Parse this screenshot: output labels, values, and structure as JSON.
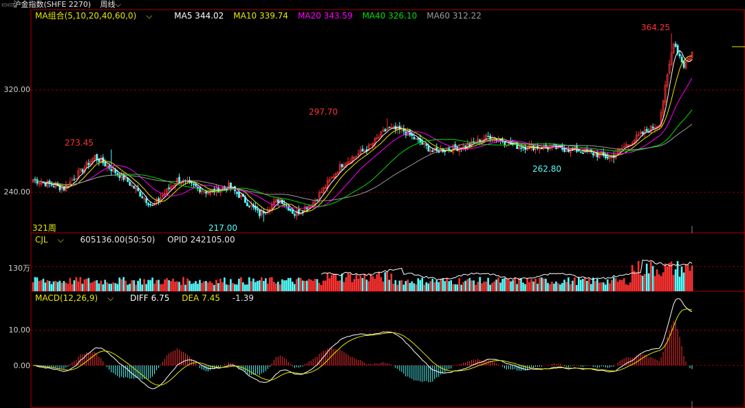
{
  "title_bar": {
    "instrument": "沪金指数(SHFE 2270)",
    "period": "周线",
    "period_arrow": "⌵",
    "icon": "chart-window-icon"
  },
  "main_panel": {
    "ma_combo_label": "MA组合(5,10,20,40,60,0)",
    "ma_items": [
      {
        "label": "MA5",
        "value": "344.02",
        "color": "#ffffff"
      },
      {
        "label": "MA10",
        "value": "339.74",
        "color": "#e8e800"
      },
      {
        "label": "MA20",
        "value": "343.59",
        "color": "#ff00ff"
      },
      {
        "label": "MA40",
        "value": "326.10",
        "color": "#00e000"
      },
      {
        "label": "MA60",
        "value": "312.22",
        "color": "#9a9a9a"
      }
    ],
    "y_ticks": [
      "320.00",
      "240.00"
    ],
    "annotations": {
      "high_2": "364.25",
      "high_1": "297.70",
      "high_0": "273.45",
      "low_0": "217.00",
      "low_1": "262.80"
    },
    "bar_count_label": "321周"
  },
  "volume_panel": {
    "indicator": "CJL",
    "volume_value": "605136.00(50:50)",
    "opid_label": "OPID",
    "opid_value": "242105.00",
    "y_tick": "130万"
  },
  "macd_panel": {
    "indicator": "MACD(12,26,9)",
    "diff_label": "DIFF",
    "diff_value": "6.75",
    "dea_label": "DEA",
    "dea_value": "7.45",
    "macd_value": "-1.39",
    "y_ticks": [
      "10.00",
      "0.00"
    ]
  },
  "colors": {
    "up": "#ff3232",
    "down": "#54ffff",
    "grid": "#8b0000",
    "frame": "#b00000",
    "diff_line": "#ffffff",
    "dea_line": "#e8e800"
  },
  "chart_data": {
    "type": "candlestick",
    "price_anchor_points": [
      {
        "bar": 0,
        "price": 250
      },
      {
        "bar": 15,
        "price": 243
      },
      {
        "bar": 30,
        "price": 268
      },
      {
        "bar": 45,
        "price": 250
      },
      {
        "bar": 58,
        "price": 229
      },
      {
        "bar": 70,
        "price": 250
      },
      {
        "bar": 85,
        "price": 240
      },
      {
        "bar": 95,
        "price": 245
      },
      {
        "bar": 110,
        "price": 223
      },
      {
        "bar": 120,
        "price": 235
      },
      {
        "bar": 127,
        "price": 223
      },
      {
        "bar": 136,
        "price": 232
      },
      {
        "bar": 150,
        "price": 262
      },
      {
        "bar": 163,
        "price": 275
      },
      {
        "bar": 172,
        "price": 290
      },
      {
        "bar": 180,
        "price": 288
      },
      {
        "bar": 194,
        "price": 272
      },
      {
        "bar": 210,
        "price": 276
      },
      {
        "bar": 222,
        "price": 284
      },
      {
        "bar": 235,
        "price": 276
      },
      {
        "bar": 250,
        "price": 275
      },
      {
        "bar": 265,
        "price": 273
      },
      {
        "bar": 280,
        "price": 267
      },
      {
        "bar": 295,
        "price": 285
      },
      {
        "bar": 304,
        "price": 294
      },
      {
        "bar": 311,
        "price": 358
      },
      {
        "bar": 316,
        "price": 339
      },
      {
        "bar": 321,
        "price": 352
      }
    ],
    "extremes": [
      {
        "bar": 38,
        "price": 273.45,
        "label": "273.45"
      },
      {
        "bar": 112,
        "price": 217.0,
        "label": "217.00"
      },
      {
        "bar": 172,
        "price": 297.7,
        "label": "297.70"
      },
      {
        "bar": 282,
        "price": 262.8,
        "label": "262.80"
      },
      {
        "bar": 310,
        "price": 364.25,
        "label": "364.25"
      }
    ],
    "moving_averages": [
      5,
      10,
      20,
      40,
      60
    ],
    "y_range": [
      206,
      375
    ],
    "bars": 321
  }
}
